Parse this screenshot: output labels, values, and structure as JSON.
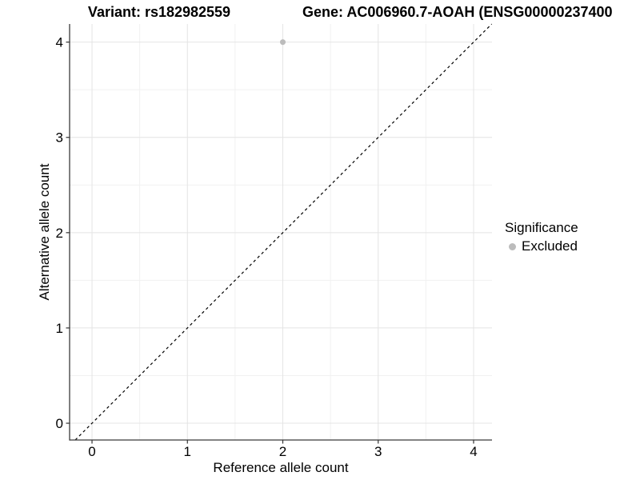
{
  "figure": {
    "title_left": "Variant: rs182982559",
    "title_right": "Gene: AC006960.7-AOAH (ENSG00000237400"
  },
  "chart_data": {
    "type": "scatter",
    "title": "Variant: rs182982559 — Gene: AC006960.7-AOAH (ENSG00000237400",
    "xlabel": "Reference allele count",
    "ylabel": "Alternative allele count",
    "xlim": [
      -0.235,
      4.193
    ],
    "ylim": [
      -0.176,
      4.19
    ],
    "x_ticks": [
      0,
      1,
      2,
      3,
      4
    ],
    "y_ticks": [
      0,
      1,
      2,
      3,
      4
    ],
    "minor_ticks_x": [
      0.5,
      1.5,
      2.5,
      3.5
    ],
    "minor_ticks_y": [
      0.5,
      1.5,
      2.5,
      3.5
    ],
    "grid": true,
    "series": [
      {
        "name": "Excluded",
        "color": "#bcbcbc",
        "point_radius": 3.5,
        "points": [
          {
            "x": 2,
            "y": 4
          }
        ]
      }
    ],
    "reference_line": {
      "type": "identity",
      "equation": "y = x",
      "style": "dashed",
      "color": "#000000"
    },
    "legend": {
      "title": "Significance",
      "position": "right",
      "items": [
        {
          "label": "Excluded",
          "color": "#bcbcbc"
        }
      ]
    },
    "colors": {
      "background": "#ffffff",
      "grid_major": "#e4e4e4",
      "grid_minor": "#f1f1f1",
      "axis_line": "#3b3b3b",
      "tick": "#333333",
      "text": "#000000"
    }
  }
}
